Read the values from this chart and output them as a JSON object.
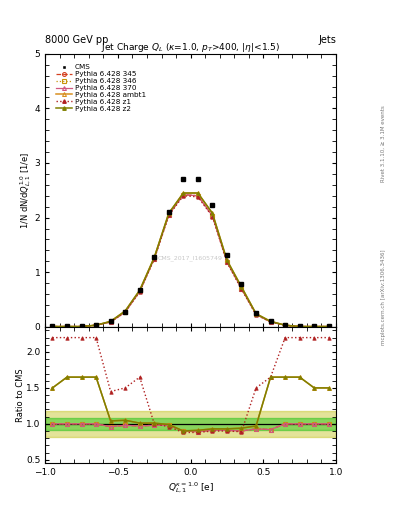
{
  "title_main": "Jet Charge $Q_L$ ($\\kappa$=1.0, $p_T$>400, $|\\eta|$<1.5)",
  "header_left": "8000 GeV pp",
  "header_right": "Jets",
  "ylabel_main": "1/N dN/d$Q_{L,1}^{1.0}$ [1/e]",
  "ylabel_ratio": "Ratio to CMS",
  "xlabel": "$Q_{L,1}^{\\kappa=1.0}$ [e]",
  "right_label_top": "Rivet 3.1.10, ≥ 3.1M events",
  "right_label_bottom": "mcplots.cern.ch [arXiv:1306.3436]",
  "watermark": "CMS_2017_I1605749",
  "xlim": [
    -1.0,
    1.0
  ],
  "ylim_main": [
    0.0,
    2.85
  ],
  "ylim_ratio": [
    0.45,
    2.35
  ],
  "x_cms": [
    -0.95,
    -0.85,
    -0.75,
    -0.65,
    -0.55,
    -0.45,
    -0.35,
    -0.25,
    -0.15,
    -0.05,
    0.05,
    0.15,
    0.25,
    0.35,
    0.45,
    0.55,
    0.65,
    0.75,
    0.85,
    0.95
  ],
  "y_cms": [
    0.02,
    0.02,
    0.02,
    0.04,
    0.1,
    0.28,
    0.67,
    1.27,
    2.1,
    2.71,
    2.7,
    2.23,
    1.31,
    0.78,
    0.25,
    0.1,
    0.04,
    0.02,
    0.02,
    0.02
  ],
  "x_py": [
    -0.95,
    -0.85,
    -0.75,
    -0.65,
    -0.55,
    -0.45,
    -0.35,
    -0.25,
    -0.15,
    -0.05,
    0.05,
    0.15,
    0.25,
    0.35,
    0.45,
    0.55,
    0.65,
    0.75,
    0.85,
    0.95
  ],
  "y_345": [
    0.005,
    0.005,
    0.005,
    0.03,
    0.09,
    0.27,
    0.65,
    1.25,
    2.05,
    2.42,
    2.4,
    2.03,
    1.19,
    0.7,
    0.23,
    0.09,
    0.03,
    0.005,
    0.005,
    0.005
  ],
  "y_346": [
    0.005,
    0.005,
    0.005,
    0.03,
    0.09,
    0.27,
    0.65,
    1.25,
    2.05,
    2.42,
    2.4,
    2.03,
    1.19,
    0.7,
    0.23,
    0.09,
    0.03,
    0.005,
    0.005,
    0.005
  ],
  "y_370": [
    0.005,
    0.005,
    0.005,
    0.03,
    0.09,
    0.27,
    0.65,
    1.25,
    2.05,
    2.42,
    2.4,
    2.03,
    1.19,
    0.7,
    0.23,
    0.09,
    0.03,
    0.005,
    0.005,
    0.005
  ],
  "y_ambt1": [
    0.005,
    0.005,
    0.005,
    0.03,
    0.1,
    0.29,
    0.67,
    1.27,
    2.08,
    2.45,
    2.45,
    2.08,
    1.22,
    0.73,
    0.24,
    0.1,
    0.03,
    0.005,
    0.005,
    0.005
  ],
  "y_z1": [
    0.005,
    0.005,
    0.005,
    0.03,
    0.09,
    0.27,
    0.64,
    1.24,
    2.04,
    2.4,
    2.38,
    2.02,
    1.18,
    0.69,
    0.22,
    0.09,
    0.03,
    0.005,
    0.005,
    0.005
  ],
  "y_z2": [
    0.005,
    0.005,
    0.005,
    0.03,
    0.1,
    0.29,
    0.67,
    1.27,
    2.08,
    2.45,
    2.45,
    2.08,
    1.22,
    0.73,
    0.24,
    0.1,
    0.03,
    0.005,
    0.005,
    0.005
  ],
  "ratio_345": [
    1.0,
    1.0,
    1.0,
    1.0,
    0.96,
    0.98,
    0.97,
    0.98,
    0.98,
    0.9,
    0.89,
    0.91,
    0.91,
    0.9,
    0.93,
    0.92,
    1.0,
    1.0,
    1.0,
    1.0
  ],
  "ratio_346": [
    1.0,
    1.0,
    1.0,
    1.0,
    0.96,
    0.98,
    0.97,
    0.98,
    0.98,
    0.9,
    0.89,
    0.91,
    0.91,
    0.9,
    0.93,
    0.92,
    1.0,
    1.0,
    1.0,
    1.0
  ],
  "ratio_370": [
    1.0,
    1.0,
    1.0,
    1.0,
    0.96,
    0.98,
    0.97,
    0.98,
    0.98,
    0.9,
    0.89,
    0.91,
    0.91,
    0.9,
    0.93,
    0.92,
    1.0,
    1.0,
    1.0,
    1.0
  ],
  "ratio_ambt1": [
    1.5,
    1.65,
    1.65,
    1.65,
    1.04,
    1.05,
    1.01,
    1.01,
    0.99,
    0.9,
    0.91,
    0.93,
    0.93,
    0.94,
    0.97,
    1.65,
    1.65,
    1.65,
    1.5,
    1.5
  ],
  "ratio_z1": [
    2.2,
    2.2,
    2.2,
    2.2,
    1.45,
    1.5,
    1.65,
    1.0,
    0.96,
    0.88,
    0.88,
    0.9,
    0.9,
    0.89,
    1.5,
    1.65,
    2.2,
    2.2,
    2.2,
    2.2
  ],
  "ratio_z2": [
    1.5,
    1.65,
    1.65,
    1.65,
    1.04,
    1.05,
    1.01,
    1.01,
    0.99,
    0.9,
    0.91,
    0.93,
    0.93,
    0.94,
    0.97,
    1.65,
    1.65,
    1.65,
    1.5,
    1.5
  ],
  "color_345": "#d44020",
  "color_346": "#c8940a",
  "color_370": "#d05880",
  "color_ambt1": "#d89020",
  "color_z1": "#b02020",
  "color_z2": "#808000",
  "color_cms": "#000000",
  "band_green": "#00bb00",
  "band_yellow": "#bbbb00",
  "band_green_alpha": 0.4,
  "band_yellow_alpha": 0.4,
  "band_inner": 0.08,
  "band_outer": 0.18
}
